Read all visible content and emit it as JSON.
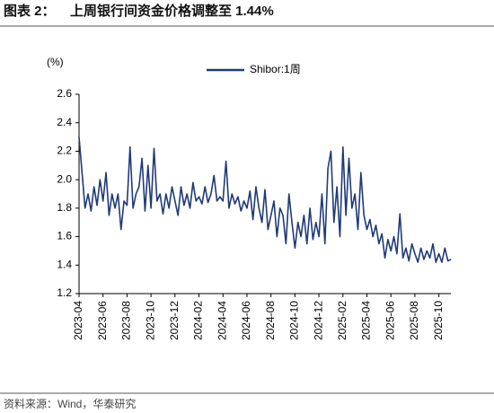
{
  "label": "图表 2：",
  "source": "资料来源：Wind，华泰研究",
  "chart_data": {
    "type": "line",
    "title": "上周银行间资金价格调整至 1.44%",
    "y_label": "(%)",
    "legend": "top",
    "categories": [
      "2023-04",
      null,
      null,
      null,
      null,
      null,
      null,
      null,
      "2023-06",
      null,
      null,
      null,
      null,
      null,
      null,
      null,
      "2023-08",
      null,
      null,
      null,
      null,
      null,
      null,
      null,
      "2023-10",
      null,
      null,
      null,
      null,
      null,
      null,
      null,
      "2023-12",
      null,
      null,
      null,
      null,
      null,
      null,
      null,
      "2024-02",
      null,
      null,
      null,
      null,
      null,
      null,
      null,
      "2024-04",
      null,
      null,
      null,
      null,
      null,
      null,
      null,
      "2024-06",
      null,
      null,
      null,
      null,
      null,
      null,
      null,
      "2024-08",
      null,
      null,
      null,
      null,
      null,
      null,
      null,
      "2024-10",
      null,
      null,
      null,
      null,
      null,
      null,
      null,
      "2024-12",
      null,
      null,
      null,
      null,
      null,
      null,
      null,
      "2025-02",
      null,
      null,
      null,
      null,
      null,
      null,
      null,
      "2025-04",
      null,
      null,
      null,
      null,
      null,
      null,
      null,
      "2025-06",
      null,
      null,
      null,
      null,
      null,
      null,
      null,
      "2025-08",
      null,
      null,
      null,
      null,
      null,
      null,
      null,
      "2025-10",
      null,
      null,
      null,
      null
    ],
    "series": [
      {
        "name": "Shibor:1周",
        "color": "#1f3a78",
        "values": [
          2.3,
          2.05,
          1.8,
          1.9,
          1.78,
          1.95,
          1.82,
          2.0,
          1.85,
          2.05,
          1.75,
          1.9,
          1.8,
          1.9,
          1.65,
          1.85,
          1.82,
          2.23,
          1.8,
          1.9,
          1.95,
          2.15,
          1.78,
          2.1,
          1.8,
          2.22,
          1.85,
          1.9,
          1.76,
          1.9,
          1.8,
          1.95,
          1.85,
          1.75,
          1.95,
          1.82,
          1.9,
          1.8,
          1.98,
          1.85,
          1.88,
          1.83,
          1.95,
          1.84,
          1.9,
          2.03,
          1.85,
          1.88,
          1.85,
          2.13,
          1.8,
          1.9,
          1.83,
          1.88,
          1.78,
          1.85,
          1.8,
          1.92,
          1.72,
          1.95,
          1.8,
          1.7,
          1.93,
          1.65,
          1.75,
          1.85,
          1.6,
          1.8,
          1.75,
          1.55,
          1.9,
          1.7,
          1.52,
          1.7,
          1.6,
          1.75,
          1.55,
          1.8,
          1.58,
          1.7,
          1.6,
          1.9,
          1.55,
          2.08,
          2.2,
          1.7,
          1.95,
          1.6,
          2.23,
          1.75,
          2.15,
          1.8,
          1.9,
          1.65,
          2.05,
          1.75,
          1.65,
          1.72,
          1.6,
          1.68,
          1.55,
          1.62,
          1.45,
          1.58,
          1.5,
          1.6,
          1.48,
          1.76,
          1.45,
          1.52,
          1.43,
          1.55,
          1.48,
          1.42,
          1.52,
          1.44,
          1.5,
          1.45,
          1.55,
          1.42,
          1.48,
          1.42,
          1.52,
          1.43,
          1.44
        ]
      }
    ],
    "ylim": [
      1.2,
      2.6
    ],
    "yticks": [
      1.2,
      1.4,
      1.6,
      1.8,
      {
        "value": 2,
        "label": "2.0"
      },
      2.2,
      2.4,
      2.6
    ]
  }
}
